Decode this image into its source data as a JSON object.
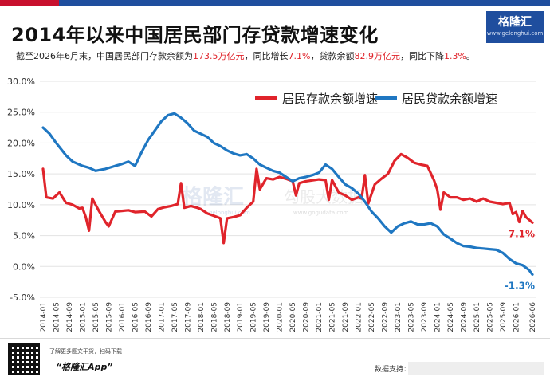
{
  "header": {
    "title": "2014年以来中国居民部门存贷款增速变化",
    "subtitle_parts": [
      {
        "text": "截至2026年6月末，中国居民部门存款余额为",
        "hl": false
      },
      {
        "text": "173.5万亿元",
        "hl": true
      },
      {
        "text": "，同比增长",
        "hl": false
      },
      {
        "text": "7.1%",
        "hl": true
      },
      {
        "text": "，贷款余额",
        "hl": false
      },
      {
        "text": "82.9万亿元",
        "hl": true
      },
      {
        "text": "，同比下降",
        "hl": false
      },
      {
        "text": "1.3%",
        "hl": true
      },
      {
        "text": "。",
        "hl": false
      }
    ]
  },
  "logo": {
    "name": "格隆汇",
    "url": "www.gelonghui.com"
  },
  "watermark": {
    "left": "格隆汇",
    "left_sub": "gelonghui.com",
    "right": "勾股大数据",
    "right_sub": "www.gogudata.com"
  },
  "footer": {
    "note": "了解更多图文干货，扫码下载",
    "app": "“格隆汇App”",
    "source": "数据支持："
  },
  "colors": {
    "deposit": "#e0242b",
    "loan": "#1f77c2",
    "brand": "#1f4e9e",
    "grid": "#e3e3e3",
    "text": "#333333"
  },
  "chart_data": {
    "type": "line",
    "title": "2014年以来中国居民部门存贷款增速变化",
    "ylim": [
      -5,
      30
    ],
    "yticks": [
      "-5.0%",
      "0.0%",
      "5.0%",
      "10.0%",
      "15.0%",
      "20.0%",
      "25.0%",
      "30.0%"
    ],
    "ytick_values": [
      -5,
      0,
      5,
      10,
      15,
      20,
      25,
      30
    ],
    "xticks": [
      "2014-01",
      "2014-05",
      "2014-09",
      "2015-01",
      "2015-05",
      "2015-09",
      "2016-01",
      "2016-05",
      "2016-09",
      "2017-01",
      "2017-05",
      "2017-09",
      "2018-01",
      "2018-05",
      "2018-09",
      "2019-01",
      "2019-05",
      "2019-09",
      "2020-01",
      "2020-05",
      "2020-09",
      "2021-01",
      "2021-05",
      "2021-09",
      "2022-01",
      "2022-05",
      "2022-09",
      "2023-01",
      "2023-05",
      "2023-09",
      "2024-01",
      "2024-05",
      "2024-09",
      "2025-01",
      "2025-05",
      "2025-09",
      "2026-01",
      "2026-06"
    ],
    "legend_position": "top-right",
    "grid": true,
    "series": [
      {
        "name": "居民存款余额增速",
        "color": "#e0242b",
        "end_label": "7.1%",
        "points": [
          [
            "2014-01",
            15.8
          ],
          [
            "2014-02",
            11.2
          ],
          [
            "2014-04",
            11.0
          ],
          [
            "2014-06",
            12.0
          ],
          [
            "2014-08",
            10.3
          ],
          [
            "2014-10",
            10.0
          ],
          [
            "2014-12",
            9.4
          ],
          [
            "2015-01",
            9.5
          ],
          [
            "2015-02",
            8.0
          ],
          [
            "2015-03",
            5.8
          ],
          [
            "2015-04",
            11.0
          ],
          [
            "2015-06",
            9.0
          ],
          [
            "2015-08",
            7.2
          ],
          [
            "2015-09",
            6.5
          ],
          [
            "2015-11",
            8.9
          ],
          [
            "2016-01",
            9.0
          ],
          [
            "2016-03",
            9.1
          ],
          [
            "2016-05",
            8.8
          ],
          [
            "2016-08",
            8.9
          ],
          [
            "2016-10",
            8.1
          ],
          [
            "2016-12",
            9.3
          ],
          [
            "2017-02",
            9.6
          ],
          [
            "2017-04",
            9.8
          ],
          [
            "2017-06",
            10.1
          ],
          [
            "2017-07",
            13.5
          ],
          [
            "2017-08",
            9.5
          ],
          [
            "2017-10",
            9.8
          ],
          [
            "2017-12",
            9.5
          ],
          [
            "2018-01",
            9.3
          ],
          [
            "2018-03",
            8.6
          ],
          [
            "2018-05",
            8.2
          ],
          [
            "2018-07",
            7.8
          ],
          [
            "2018-08",
            3.8
          ],
          [
            "2018-09",
            7.8
          ],
          [
            "2018-11",
            8.0
          ],
          [
            "2019-01",
            8.3
          ],
          [
            "2019-03",
            9.5
          ],
          [
            "2019-05",
            10.5
          ],
          [
            "2019-06",
            15.8
          ],
          [
            "2019-07",
            12.5
          ],
          [
            "2019-09",
            14.3
          ],
          [
            "2019-11",
            14.1
          ],
          [
            "2020-01",
            14.5
          ],
          [
            "2020-03",
            14.2
          ],
          [
            "2020-05",
            13.8
          ],
          [
            "2020-06",
            11.5
          ],
          [
            "2020-07",
            13.5
          ],
          [
            "2020-09",
            13.8
          ],
          [
            "2021-01",
            14.1
          ],
          [
            "2021-03",
            14.0
          ],
          [
            "2021-04",
            10.8
          ],
          [
            "2021-05",
            14.0
          ],
          [
            "2021-07",
            12.0
          ],
          [
            "2021-09",
            11.5
          ],
          [
            "2021-11",
            10.8
          ],
          [
            "2022-01",
            11.2
          ],
          [
            "2022-02",
            11.0
          ],
          [
            "2022-03",
            14.8
          ],
          [
            "2022-04",
            10.2
          ],
          [
            "2022-06",
            13.3
          ],
          [
            "2022-08",
            14.2
          ],
          [
            "2022-10",
            15.0
          ],
          [
            "2022-12",
            17.1
          ],
          [
            "2023-02",
            18.2
          ],
          [
            "2023-04",
            17.6
          ],
          [
            "2023-06",
            16.8
          ],
          [
            "2023-08",
            16.5
          ],
          [
            "2023-10",
            16.3
          ],
          [
            "2023-12",
            14.0
          ],
          [
            "2024-01",
            12.5
          ],
          [
            "2024-02",
            9.2
          ],
          [
            "2024-03",
            12.0
          ],
          [
            "2024-05",
            11.2
          ],
          [
            "2024-07",
            11.2
          ],
          [
            "2024-09",
            10.8
          ],
          [
            "2024-11",
            11.0
          ],
          [
            "2025-01",
            10.5
          ],
          [
            "2025-03",
            11.0
          ],
          [
            "2025-05",
            10.5
          ],
          [
            "2025-07",
            10.3
          ],
          [
            "2025-09",
            10.1
          ],
          [
            "2025-11",
            10.3
          ],
          [
            "2025-12",
            8.5
          ],
          [
            "2026-01",
            8.8
          ],
          [
            "2026-02",
            7.2
          ],
          [
            "2026-03",
            9.0
          ],
          [
            "2026-04",
            8.0
          ],
          [
            "2026-06",
            7.1
          ]
        ]
      },
      {
        "name": "居民贷款余额增速",
        "color": "#1f77c2",
        "end_label": "-1.3%",
        "points": [
          [
            "2014-01",
            22.5
          ],
          [
            "2014-03",
            21.5
          ],
          [
            "2014-05",
            20.0
          ],
          [
            "2014-08",
            18.0
          ],
          [
            "2014-10",
            17.0
          ],
          [
            "2015-01",
            16.3
          ],
          [
            "2015-03",
            16.0
          ],
          [
            "2015-05",
            15.5
          ],
          [
            "2015-08",
            15.8
          ],
          [
            "2015-11",
            16.3
          ],
          [
            "2016-01",
            16.6
          ],
          [
            "2016-03",
            17.0
          ],
          [
            "2016-05",
            16.3
          ],
          [
            "2016-07",
            18.5
          ],
          [
            "2016-09",
            20.5
          ],
          [
            "2016-11",
            22.0
          ],
          [
            "2017-01",
            23.5
          ],
          [
            "2017-03",
            24.5
          ],
          [
            "2017-05",
            24.8
          ],
          [
            "2017-07",
            24.1
          ],
          [
            "2017-09",
            23.2
          ],
          [
            "2017-11",
            22.0
          ],
          [
            "2018-01",
            21.5
          ],
          [
            "2018-03",
            21.0
          ],
          [
            "2018-05",
            20.0
          ],
          [
            "2018-07",
            19.5
          ],
          [
            "2018-09",
            18.8
          ],
          [
            "2018-11",
            18.3
          ],
          [
            "2019-01",
            18.0
          ],
          [
            "2019-03",
            18.2
          ],
          [
            "2019-05",
            17.5
          ],
          [
            "2019-07",
            16.5
          ],
          [
            "2019-09",
            16.0
          ],
          [
            "2019-11",
            15.5
          ],
          [
            "2020-01",
            15.2
          ],
          [
            "2020-03",
            14.5
          ],
          [
            "2020-05",
            13.8
          ],
          [
            "2020-07",
            14.3
          ],
          [
            "2020-09",
            14.5
          ],
          [
            "2020-11",
            14.8
          ],
          [
            "2021-01",
            15.2
          ],
          [
            "2021-03",
            16.5
          ],
          [
            "2021-05",
            15.8
          ],
          [
            "2021-07",
            14.5
          ],
          [
            "2021-09",
            13.3
          ],
          [
            "2021-11",
            12.7
          ],
          [
            "2022-01",
            11.8
          ],
          [
            "2022-03",
            10.5
          ],
          [
            "2022-05",
            8.9
          ],
          [
            "2022-07",
            7.8
          ],
          [
            "2022-09",
            6.5
          ],
          [
            "2022-11",
            5.5
          ],
          [
            "2023-01",
            6.5
          ],
          [
            "2023-03",
            7.0
          ],
          [
            "2023-05",
            7.3
          ],
          [
            "2023-07",
            6.8
          ],
          [
            "2023-09",
            6.8
          ],
          [
            "2023-11",
            7.0
          ],
          [
            "2024-01",
            6.5
          ],
          [
            "2024-03",
            5.2
          ],
          [
            "2024-05",
            4.5
          ],
          [
            "2024-07",
            3.8
          ],
          [
            "2024-09",
            3.3
          ],
          [
            "2024-11",
            3.2
          ],
          [
            "2025-01",
            3.0
          ],
          [
            "2025-03",
            2.9
          ],
          [
            "2025-05",
            2.8
          ],
          [
            "2025-07",
            2.7
          ],
          [
            "2025-09",
            2.2
          ],
          [
            "2025-11",
            1.2
          ],
          [
            "2026-01",
            0.5
          ],
          [
            "2026-03",
            0.2
          ],
          [
            "2026-05",
            -0.6
          ],
          [
            "2026-06",
            -1.3
          ]
        ]
      }
    ]
  }
}
